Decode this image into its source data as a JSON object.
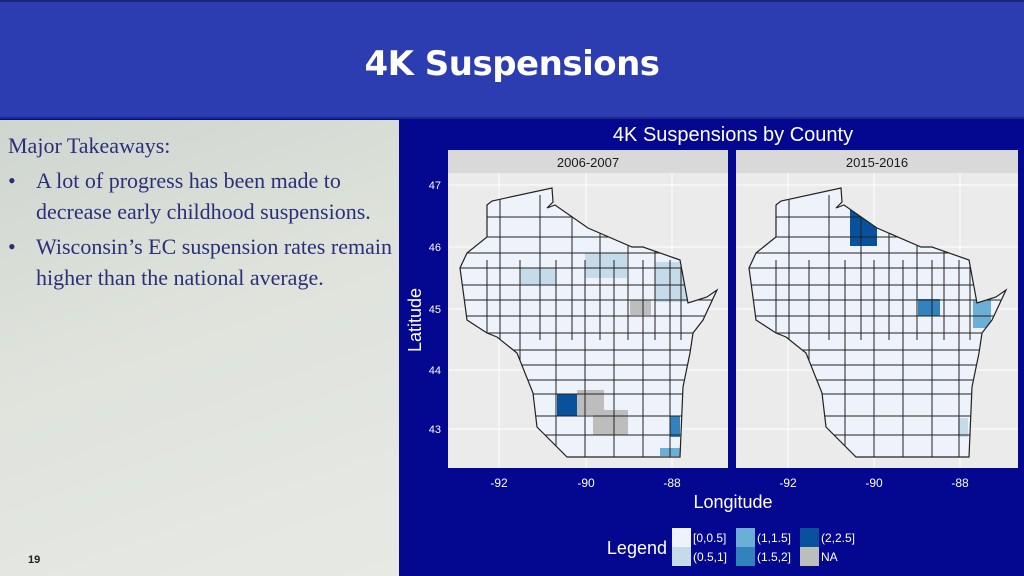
{
  "slide": {
    "title": "4K Suspensions",
    "page_number": "19"
  },
  "takeaways": {
    "heading": "Major Takeaways:",
    "bullets": [
      "A lot of progress has been made to decrease early childhood suspensions.",
      "Wisconsin’s EC suspension rates remain higher than the national average."
    ]
  },
  "chart_data": {
    "type": "choropleth",
    "title": "4K Suspensions by County",
    "xlabel": "Longitude",
    "ylabel": "Latitude",
    "x_ticks": [
      "-92",
      "-90",
      "-88"
    ],
    "y_ticks": [
      "47",
      "46",
      "45",
      "44",
      "43"
    ],
    "panels": [
      {
        "label": "2006-2007",
        "highlighted_bins": [
          "(0.5,1]",
          "(0.5,1]",
          "(0.5,1]",
          "NA",
          "NA",
          "NA",
          "(2,2.5]",
          "(1.5,2]",
          "(1,1.5]"
        ]
      },
      {
        "label": "2015-2016",
        "highlighted_bins": [
          "(2,2.5]",
          "(1.5,2]",
          "(1,1.5]",
          "(0.5,1]"
        ]
      }
    ],
    "legend": {
      "title": "Legend",
      "items": [
        {
          "label": "[0,0.5]",
          "color": "#eef2fb"
        },
        {
          "label": "(0.5,1]",
          "color": "#c6dbea"
        },
        {
          "label": "(1,1.5]",
          "color": "#6baed6"
        },
        {
          "label": "(1.5,2]",
          "color": "#3182bd"
        },
        {
          "label": "(2,2.5]",
          "color": "#08519c"
        },
        {
          "label": "NA",
          "color": "#bdbdbd"
        }
      ]
    },
    "grid": true
  }
}
